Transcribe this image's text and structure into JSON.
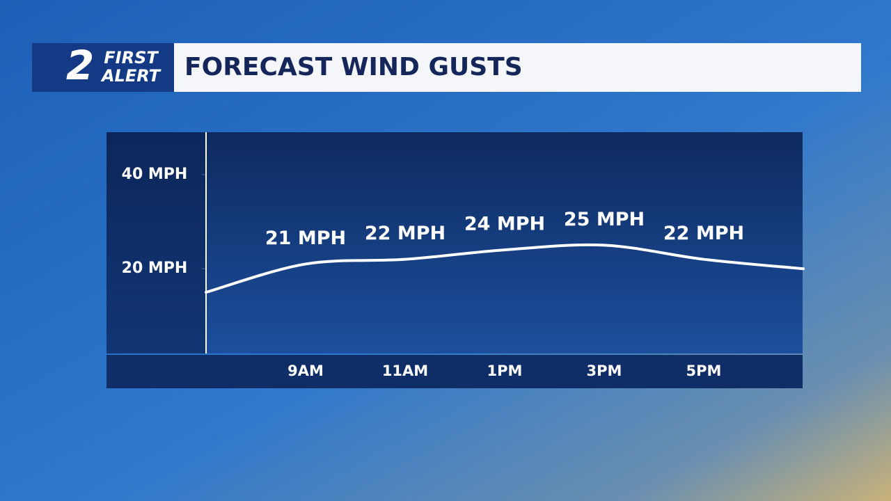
{
  "branding": {
    "number": "2",
    "line1": "FIRST",
    "line2": "ALERT"
  },
  "chart_data": {
    "type": "line",
    "title": "FORECAST WIND GUSTS",
    "categories": [
      null,
      "9AM",
      "11AM",
      "1PM",
      "3PM",
      "5PM",
      null
    ],
    "series": [
      {
        "name": "Wind gusts",
        "color": "#ffffff",
        "values": [
          15,
          21,
          22,
          24,
          25,
          22,
          20
        ],
        "value_labels": [
          null,
          "21 MPH",
          "22 MPH",
          "24 MPH",
          "25 MPH",
          "22 MPH",
          null
        ]
      }
    ],
    "ylim": [
      2,
      49
    ],
    "yticks": [
      {
        "value": 20,
        "label": "20 MPH"
      },
      {
        "value": 40,
        "label": "40 MPH"
      }
    ],
    "grid": false
  }
}
